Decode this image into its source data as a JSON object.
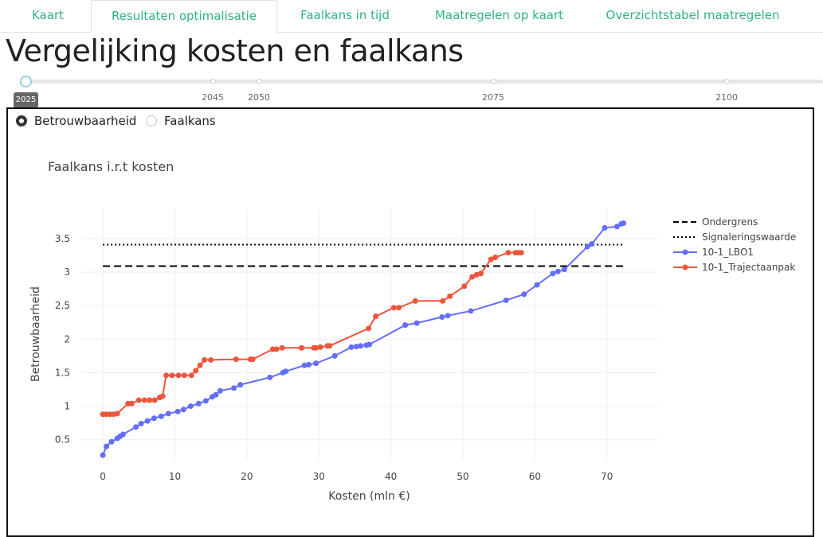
{
  "tabs": [
    {
      "label": "Kaart",
      "active": false
    },
    {
      "label": "Resultaten optimalisatie",
      "active": true
    },
    {
      "label": "Faalkans in tijd",
      "active": false
    },
    {
      "label": "Maatregelen op kaart",
      "active": false
    },
    {
      "label": "Overzichtstabel maatregelen",
      "active": false
    }
  ],
  "page_title": "Vergelijking kosten en faalkans",
  "slider": {
    "selected": "2025",
    "marks": [
      "2045",
      "2050",
      "2075",
      "2100"
    ]
  },
  "radio": {
    "options": [
      "Betrouwbaarheid",
      "Faalkans"
    ],
    "selected": "Betrouwbaarheid"
  },
  "colors": {
    "accent": "#2fb380",
    "lbo1": "#636efa",
    "trajectaanpak": "#ef553b",
    "reference": "#000000"
  },
  "chart_data": {
    "type": "line",
    "title": "Faalkans i.r.t kosten",
    "xlabel": "Kosten (mln €)",
    "ylabel": "Betrouwbaarheid",
    "xlim": [
      -3,
      77
    ],
    "ylim": [
      0.2,
      3.95
    ],
    "xticks": [
      0,
      10,
      20,
      30,
      40,
      50,
      60,
      70
    ],
    "yticks": [
      0.5,
      1,
      1.5,
      2,
      2.5,
      3,
      3.5
    ],
    "ytick_labels": [
      "0.5",
      "1",
      "1.5",
      "2",
      "2.5",
      "3",
      "3.5"
    ],
    "grid": true,
    "legend_position": "top-right",
    "reference_lines": [
      {
        "name": "Ondergrens",
        "y": 3.09,
        "style": "dashed"
      },
      {
        "name": "Signaleringswaarde",
        "y": 3.41,
        "style": "dotted"
      }
    ],
    "series": [
      {
        "name": "10-1_LBO1",
        "x": [
          0,
          0.5,
          1.2,
          2.0,
          2.4,
          2.8,
          4.6,
          5.3,
          6.2,
          7.1,
          8.1,
          9.1,
          10.4,
          11.2,
          12.2,
          13.3,
          14.3,
          15.2,
          15.7,
          16.3,
          18.2,
          19.1,
          23.2,
          25.0,
          25.4,
          28.0,
          28.6,
          29.6,
          32.2,
          34.5,
          35.2,
          35.8,
          36.6,
          37.0,
          42.0,
          43.6,
          47.1,
          47.9,
          51.1,
          56.0,
          58.5,
          60.3,
          62.5,
          63.2,
          64.1,
          67.3,
          67.9,
          69.7,
          71.4,
          72.0,
          72.3
        ],
        "y": [
          0.27,
          0.4,
          0.47,
          0.52,
          0.55,
          0.58,
          0.69,
          0.74,
          0.78,
          0.82,
          0.85,
          0.89,
          0.92,
          0.95,
          1.0,
          1.04,
          1.08,
          1.14,
          1.17,
          1.23,
          1.27,
          1.32,
          1.43,
          1.5,
          1.52,
          1.61,
          1.62,
          1.64,
          1.75,
          1.88,
          1.89,
          1.9,
          1.91,
          1.92,
          2.21,
          2.24,
          2.33,
          2.35,
          2.42,
          2.58,
          2.67,
          2.81,
          2.98,
          3.01,
          3.04,
          3.38,
          3.42,
          3.66,
          3.68,
          3.72,
          3.73
        ]
      },
      {
        "name": "10-1_Trajectaanpak",
        "x": [
          0,
          0.5,
          1.0,
          1.5,
          2.0,
          3.5,
          4.0,
          5.0,
          5.8,
          6.5,
          7.2,
          7.9,
          8.3,
          8.8,
          9.6,
          10.5,
          11.3,
          12.3,
          12.9,
          13.5,
          14.1,
          15.0,
          18.5,
          20.5,
          20.8,
          23.6,
          24.1,
          24.9,
          27.6,
          29.3,
          29.6,
          30.2,
          31.2,
          31.5,
          36.9,
          37.9,
          40.4,
          41.1,
          43.4,
          47.2,
          48.2,
          50.2,
          51.3,
          51.9,
          52.5,
          53.9,
          54.5,
          56.3,
          57.3,
          57.7,
          58.1
        ],
        "y": [
          0.88,
          0.88,
          0.88,
          0.88,
          0.89,
          1.04,
          1.04,
          1.09,
          1.09,
          1.09,
          1.09,
          1.13,
          1.15,
          1.46,
          1.46,
          1.46,
          1.46,
          1.46,
          1.53,
          1.61,
          1.69,
          1.69,
          1.7,
          1.7,
          1.7,
          1.85,
          1.85,
          1.87,
          1.87,
          1.87,
          1.87,
          1.88,
          1.9,
          1.9,
          2.16,
          2.34,
          2.47,
          2.47,
          2.57,
          2.57,
          2.64,
          2.79,
          2.93,
          2.96,
          2.98,
          3.19,
          3.22,
          3.29,
          3.29,
          3.29,
          3.29
        ]
      }
    ]
  }
}
